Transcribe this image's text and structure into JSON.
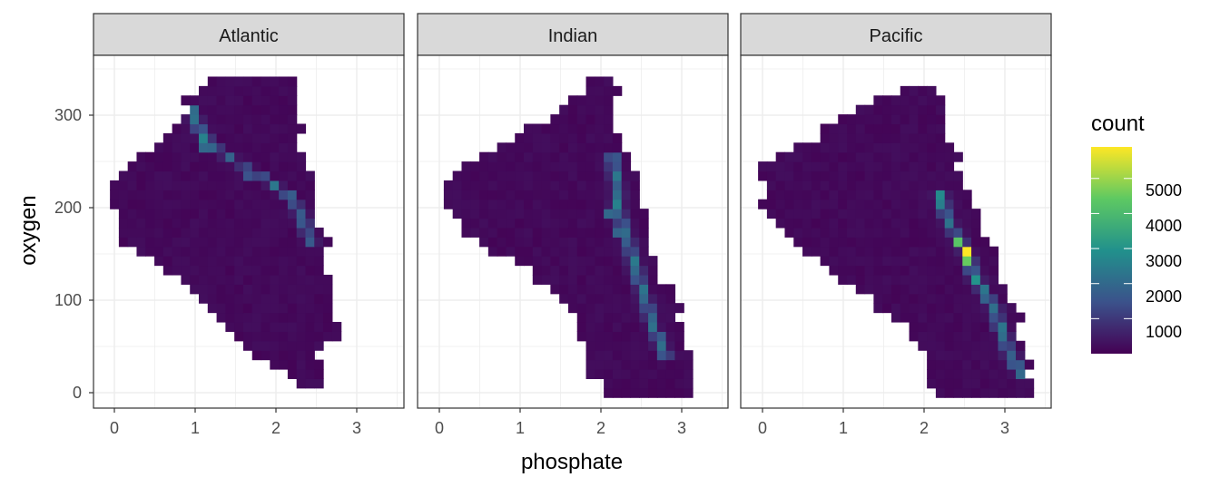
{
  "chart_data": {
    "type": "heatmap",
    "subtype": "2d-bin-count",
    "xlabel": "phosphate",
    "ylabel": "oxygen",
    "xlim": [
      -0.25,
      3.6
    ],
    "ylim": [
      -15,
      370
    ],
    "x_ticks": [
      0,
      1,
      2,
      3
    ],
    "y_ticks": [
      0,
      100,
      200,
      300
    ],
    "grid": true,
    "colorscale": [
      "#440154",
      "#3b528b",
      "#21918c",
      "#5ec962",
      "#fde725"
    ],
    "bin_width": {
      "x": 0.11,
      "y": 10.2
    },
    "legend": {
      "title": "count",
      "position": "right",
      "min": 0,
      "max": 5900,
      "ticks": [
        1000,
        2000,
        3000,
        4000,
        5000
      ]
    },
    "panels": [
      {
        "name": "Atlantic",
        "region": {
          "left": [
            [
              330,
              1.1
            ],
            [
              320,
              0.85
            ],
            [
              300,
              0.9
            ],
            [
              270,
              0.55
            ],
            [
              250,
              0.15
            ],
            [
              220,
              -0.05
            ],
            [
              190,
              0.0
            ],
            [
              165,
              0.1
            ],
            [
              150,
              0.3
            ],
            [
              140,
              0.55
            ],
            [
              115,
              0.95
            ],
            [
              95,
              1.15
            ],
            [
              75,
              1.35
            ],
            [
              55,
              1.55
            ],
            [
              40,
              1.8
            ],
            [
              25,
              2.1
            ],
            [
              15,
              2.2
            ]
          ],
          "right": [
            [
              335,
              2.2
            ],
            [
              320,
              2.25
            ],
            [
              300,
              2.25
            ],
            [
              270,
              2.3
            ],
            [
              250,
              2.4
            ],
            [
              215,
              2.45
            ],
            [
              190,
              2.55
            ],
            [
              165,
              2.6
            ],
            [
              135,
              2.65
            ],
            [
              110,
              2.7
            ],
            [
              85,
              2.75
            ],
            [
              70,
              2.8
            ],
            [
              55,
              2.7
            ],
            [
              40,
              2.5
            ],
            [
              15,
              2.6
            ]
          ]
        },
        "ridge": [
          [
            310,
            0.95
          ],
          [
            285,
            1.05
          ],
          [
            265,
            1.25
          ],
          [
            248,
            1.55
          ],
          [
            230,
            1.9
          ],
          [
            210,
            2.2
          ],
          [
            185,
            2.35
          ],
          [
            160,
            2.45
          ]
        ],
        "ridge_peak": 2300,
        "hot": [
          {
            "x": 1.05,
            "y": 280,
            "v": 2600
          },
          {
            "x": 1.15,
            "y": 270,
            "v": 2000
          },
          {
            "x": 1.4,
            "y": 255,
            "v": 1800
          },
          {
            "x": 1.6,
            "y": 238,
            "v": 1500
          },
          {
            "x": 2.2,
            "y": 215,
            "v": 1700
          },
          {
            "x": 2.3,
            "y": 190,
            "v": 1300
          }
        ],
        "holes": [
          {
            "x": 0.4,
            "y": 312
          }
        ]
      },
      {
        "name": "Indian",
        "region": {
          "left": [
            [
              345,
              1.95
            ],
            [
              330,
              1.8
            ],
            [
              300,
              1.35
            ],
            [
              280,
              1.0
            ],
            [
              260,
              0.6
            ],
            [
              240,
              0.25
            ],
            [
              225,
              0.05
            ],
            [
              205,
              0.05
            ],
            [
              185,
              0.2
            ],
            [
              160,
              0.55
            ],
            [
              140,
              0.95
            ],
            [
              120,
              1.25
            ],
            [
              100,
              1.45
            ],
            [
              80,
              1.7
            ],
            [
              55,
              1.8
            ],
            [
              30,
              1.85
            ],
            [
              5,
              2.0
            ]
          ],
          "right": [
            [
              345,
              2.05
            ],
            [
              335,
              2.15
            ],
            [
              310,
              2.15
            ],
            [
              280,
              2.2
            ],
            [
              260,
              2.3
            ],
            [
              240,
              2.45
            ],
            [
              220,
              2.5
            ],
            [
              190,
              2.55
            ],
            [
              160,
              2.6
            ],
            [
              130,
              2.7
            ],
            [
              100,
              2.9
            ],
            [
              75,
              3.0
            ],
            [
              50,
              3.05
            ],
            [
              30,
              3.15
            ],
            [
              5,
              3.15
            ]
          ]
        },
        "ridge": [
          [
            250,
            2.15
          ],
          [
            225,
            2.2
          ],
          [
            205,
            2.2
          ],
          [
            185,
            2.25
          ],
          [
            160,
            2.35
          ],
          [
            130,
            2.45
          ],
          [
            100,
            2.55
          ],
          [
            70,
            2.65
          ],
          [
            40,
            2.8
          ]
        ],
        "ridge_peak": 2400,
        "hot": [
          {
            "x": 2.2,
            "y": 205,
            "v": 2600
          },
          {
            "x": 2.1,
            "y": 195,
            "v": 2000
          },
          {
            "x": 2.25,
            "y": 175,
            "v": 1900
          },
          {
            "x": 2.35,
            "y": 160,
            "v": 1700
          }
        ],
        "holes": [
          {
            "x": 1.75,
            "y": 325
          }
        ]
      },
      {
        "name": "Pacific",
        "region": {
          "left": [
            [
              335,
              2.0
            ],
            [
              320,
              1.45
            ],
            [
              300,
              0.95
            ],
            [
              270,
              0.55
            ],
            [
              250,
              0.0
            ],
            [
              220,
              0.05
            ],
            [
              200,
              -0.05
            ],
            [
              180,
              0.2
            ],
            [
              150,
              0.6
            ],
            [
              120,
              1.0
            ],
            [
              95,
              1.4
            ],
            [
              75,
              1.7
            ],
            [
              50,
              1.9
            ],
            [
              25,
              2.0
            ],
            [
              10,
              2.1
            ],
            [
              -5,
              2.15
            ]
          ],
          "right": [
            [
              340,
              2.05
            ],
            [
              320,
              2.2
            ],
            [
              300,
              2.25
            ],
            [
              270,
              2.3
            ],
            [
              250,
              2.4
            ],
            [
              230,
              2.5
            ],
            [
              205,
              2.6
            ],
            [
              180,
              2.7
            ],
            [
              155,
              2.85
            ],
            [
              130,
              2.95
            ],
            [
              105,
              3.05
            ],
            [
              80,
              3.15
            ],
            [
              50,
              3.25
            ],
            [
              20,
              3.35
            ],
            [
              -5,
              3.4
            ]
          ]
        },
        "ridge": [
          [
            215,
            2.2
          ],
          [
            185,
            2.3
          ],
          [
            165,
            2.45
          ],
          [
            145,
            2.55
          ],
          [
            120,
            2.65
          ],
          [
            95,
            2.85
          ],
          [
            70,
            2.95
          ],
          [
            45,
            3.05
          ],
          [
            20,
            3.2
          ]
        ],
        "ridge_peak": 2600,
        "hot": [
          {
            "x": 2.55,
            "y": 155,
            "v": 5900
          },
          {
            "x": 2.45,
            "y": 165,
            "v": 4300
          },
          {
            "x": 2.55,
            "y": 142,
            "v": 4500
          },
          {
            "x": 2.2,
            "y": 210,
            "v": 2800
          },
          {
            "x": 2.2,
            "y": 200,
            "v": 2500
          },
          {
            "x": 2.65,
            "y": 125,
            "v": 3000
          },
          {
            "x": 2.7,
            "y": 110,
            "v": 2300
          }
        ],
        "holes": []
      }
    ]
  }
}
